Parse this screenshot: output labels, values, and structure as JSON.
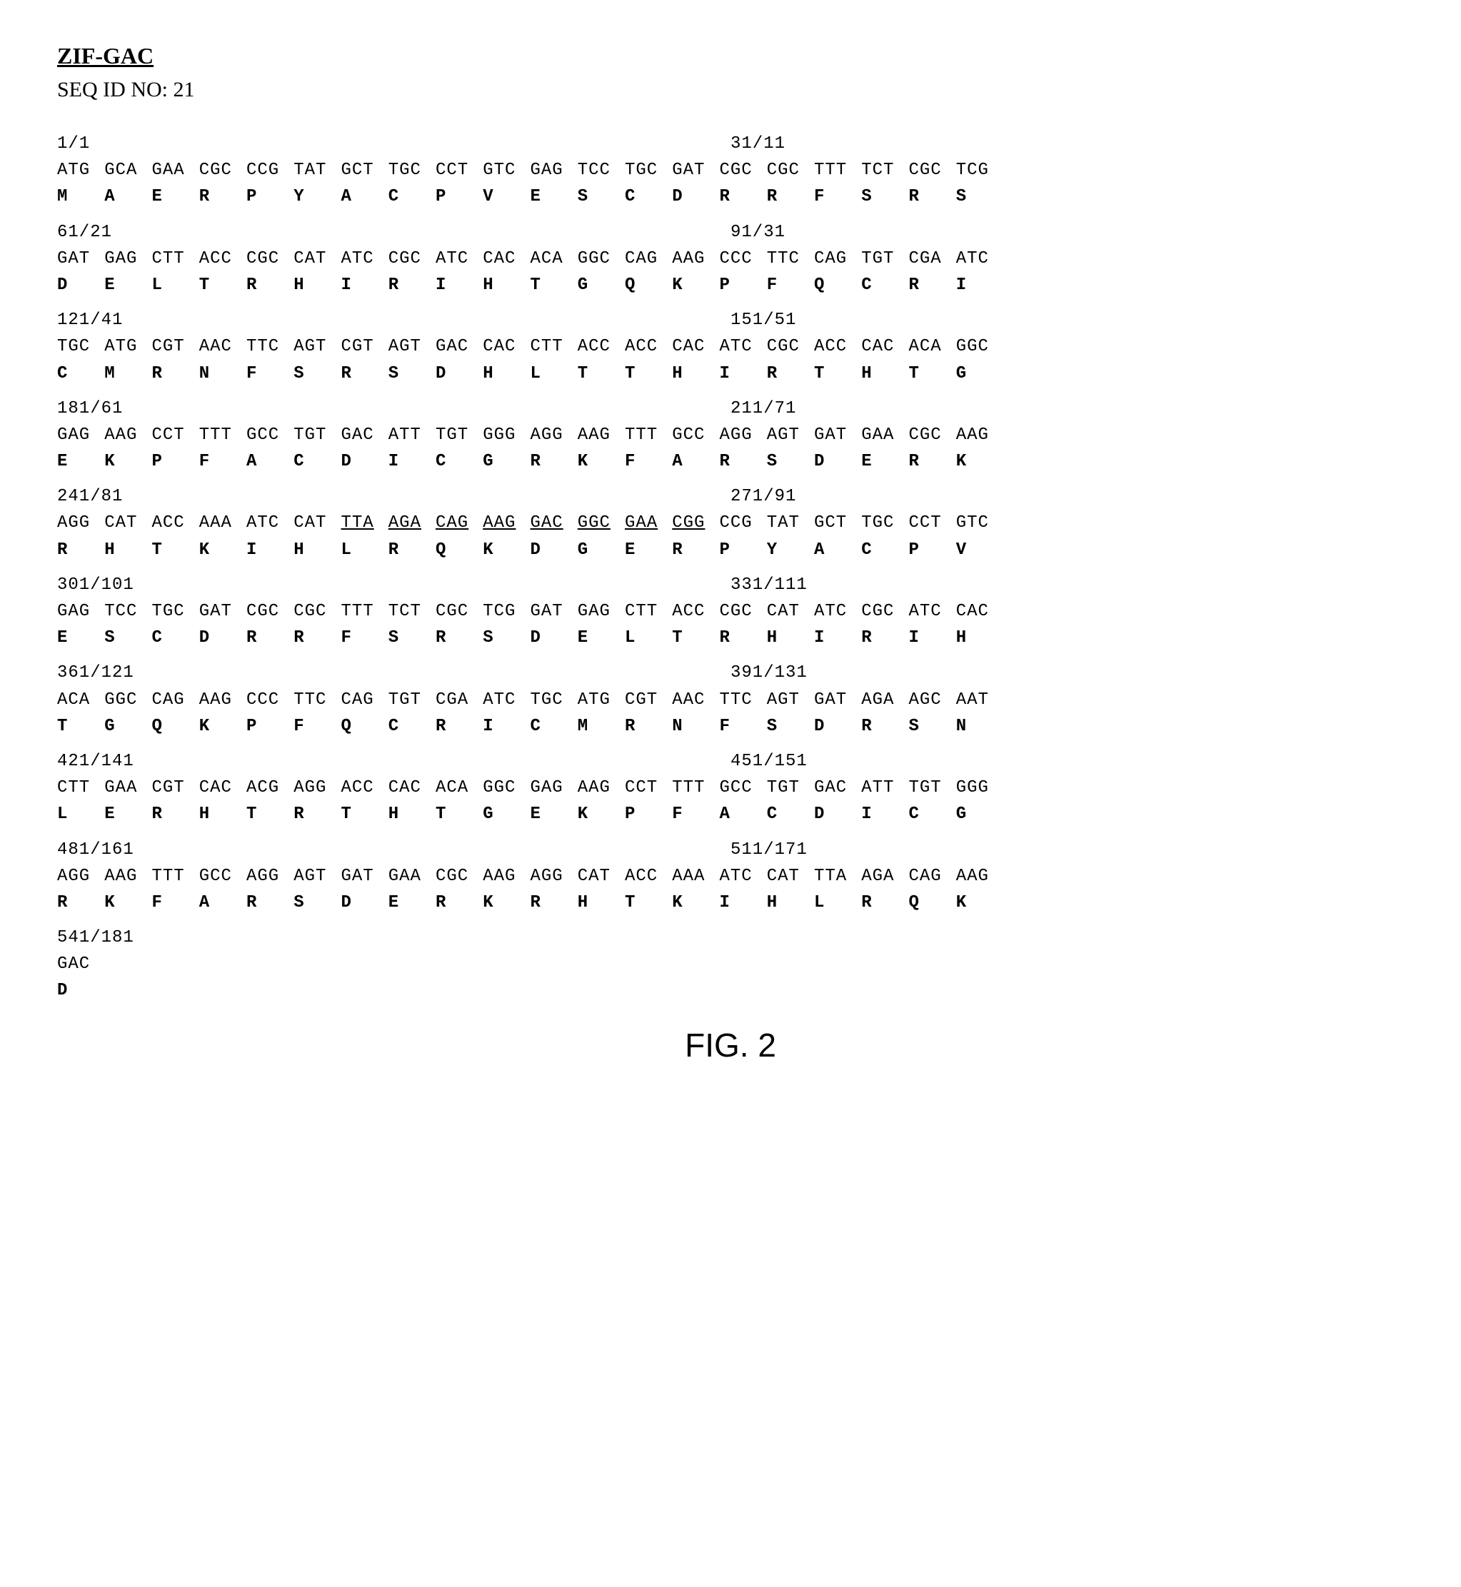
{
  "title": "ZIF-GAC",
  "subtitle": "SEQ ID NO: 21",
  "figure_label": "FIG. 2",
  "underlined_range": {
    "row": 5,
    "start": 6,
    "end": 13
  },
  "rows": [
    {
      "pos_left": "1/1",
      "pos_right": "31/11",
      "codons": [
        "ATG",
        "GCA",
        "GAA",
        "CGC",
        "CCG",
        "TAT",
        "GCT",
        "TGC",
        "CCT",
        "GTC",
        "GAG",
        "TCC",
        "TGC",
        "GAT",
        "CGC",
        "CGC",
        "TTT",
        "TCT",
        "CGC",
        "TCG"
      ],
      "aas": [
        "M",
        "A",
        "E",
        "R",
        "P",
        "Y",
        "A",
        "C",
        "P",
        "V",
        "E",
        "S",
        "C",
        "D",
        "R",
        "R",
        "F",
        "S",
        "R",
        "S"
      ]
    },
    {
      "pos_left": "61/21",
      "pos_right": "91/31",
      "codons": [
        "GAT",
        "GAG",
        "CTT",
        "ACC",
        "CGC",
        "CAT",
        "ATC",
        "CGC",
        "ATC",
        "CAC",
        "ACA",
        "GGC",
        "CAG",
        "AAG",
        "CCC",
        "TTC",
        "CAG",
        "TGT",
        "CGA",
        "ATC"
      ],
      "aas": [
        "D",
        "E",
        "L",
        "T",
        "R",
        "H",
        "I",
        "R",
        "I",
        "H",
        "T",
        "G",
        "Q",
        "K",
        "P",
        "F",
        "Q",
        "C",
        "R",
        "I"
      ]
    },
    {
      "pos_left": "121/41",
      "pos_right": "151/51",
      "codons": [
        "TGC",
        "ATG",
        "CGT",
        "AAC",
        "TTC",
        "AGT",
        "CGT",
        "AGT",
        "GAC",
        "CAC",
        "CTT",
        "ACC",
        "ACC",
        "CAC",
        "ATC",
        "CGC",
        "ACC",
        "CAC",
        "ACA",
        "GGC"
      ],
      "aas": [
        "C",
        "M",
        "R",
        "N",
        "F",
        "S",
        "R",
        "S",
        "D",
        "H",
        "L",
        "T",
        "T",
        "H",
        "I",
        "R",
        "T",
        "H",
        "T",
        "G"
      ]
    },
    {
      "pos_left": "181/61",
      "pos_right": "211/71",
      "codons": [
        "GAG",
        "AAG",
        "CCT",
        "TTT",
        "GCC",
        "TGT",
        "GAC",
        "ATT",
        "TGT",
        "GGG",
        "AGG",
        "AAG",
        "TTT",
        "GCC",
        "AGG",
        "AGT",
        "GAT",
        "GAA",
        "CGC",
        "AAG"
      ],
      "aas": [
        "E",
        "K",
        "P",
        "F",
        "A",
        "C",
        "D",
        "I",
        "C",
        "G",
        "R",
        "K",
        "F",
        "A",
        "R",
        "S",
        "D",
        "E",
        "R",
        "K"
      ]
    },
    {
      "pos_left": "241/81",
      "pos_right": "271/91",
      "codons": [
        "AGG",
        "CAT",
        "ACC",
        "AAA",
        "ATC",
        "CAT",
        "TTA",
        "AGA",
        "CAG",
        "AAG",
        "GAC",
        "GGC",
        "GAA",
        "CGG",
        "CCG",
        "TAT",
        "GCT",
        "TGC",
        "CCT",
        "GTC"
      ],
      "aas": [
        "R",
        "H",
        "T",
        "K",
        "I",
        "H",
        "L",
        "R",
        "Q",
        "K",
        "D",
        "G",
        "E",
        "R",
        "P",
        "Y",
        "A",
        "C",
        "P",
        "V"
      ]
    },
    {
      "pos_left": "301/101",
      "pos_right": "331/111",
      "codons": [
        "GAG",
        "TCC",
        "TGC",
        "GAT",
        "CGC",
        "CGC",
        "TTT",
        "TCT",
        "CGC",
        "TCG",
        "GAT",
        "GAG",
        "CTT",
        "ACC",
        "CGC",
        "CAT",
        "ATC",
        "CGC",
        "ATC",
        "CAC"
      ],
      "aas": [
        "E",
        "S",
        "C",
        "D",
        "R",
        "R",
        "F",
        "S",
        "R",
        "S",
        "D",
        "E",
        "L",
        "T",
        "R",
        "H",
        "I",
        "R",
        "I",
        "H"
      ]
    },
    {
      "pos_left": "361/121",
      "pos_right": "391/131",
      "codons": [
        "ACA",
        "GGC",
        "CAG",
        "AAG",
        "CCC",
        "TTC",
        "CAG",
        "TGT",
        "CGA",
        "ATC",
        "TGC",
        "ATG",
        "CGT",
        "AAC",
        "TTC",
        "AGT",
        "GAT",
        "AGA",
        "AGC",
        "AAT"
      ],
      "aas": [
        "T",
        "G",
        "Q",
        "K",
        "P",
        "F",
        "Q",
        "C",
        "R",
        "I",
        "C",
        "M",
        "R",
        "N",
        "F",
        "S",
        "D",
        "R",
        "S",
        "N"
      ]
    },
    {
      "pos_left": "421/141",
      "pos_right": "451/151",
      "codons": [
        "CTT",
        "GAA",
        "CGT",
        "CAC",
        "ACG",
        "AGG",
        "ACC",
        "CAC",
        "ACA",
        "GGC",
        "GAG",
        "AAG",
        "CCT",
        "TTT",
        "GCC",
        "TGT",
        "GAC",
        "ATT",
        "TGT",
        "GGG"
      ],
      "aas": [
        "L",
        "E",
        "R",
        "H",
        "T",
        "R",
        "T",
        "H",
        "T",
        "G",
        "E",
        "K",
        "P",
        "F",
        "A",
        "C",
        "D",
        "I",
        "C",
        "G"
      ]
    },
    {
      "pos_left": "481/161",
      "pos_right": "511/171",
      "codons": [
        "AGG",
        "AAG",
        "TTT",
        "GCC",
        "AGG",
        "AGT",
        "GAT",
        "GAA",
        "CGC",
        "AAG",
        "AGG",
        "CAT",
        "ACC",
        "AAA",
        "ATC",
        "CAT",
        "TTA",
        "AGA",
        "CAG",
        "AAG"
      ],
      "aas": [
        "R",
        "K",
        "F",
        "A",
        "R",
        "S",
        "D",
        "E",
        "R",
        "K",
        "R",
        "H",
        "T",
        "K",
        "I",
        "H",
        "L",
        "R",
        "Q",
        "K"
      ]
    },
    {
      "pos_left": "541/181",
      "pos_right": "",
      "codons": [
        "GAC"
      ],
      "aas": [
        "D"
      ]
    }
  ]
}
